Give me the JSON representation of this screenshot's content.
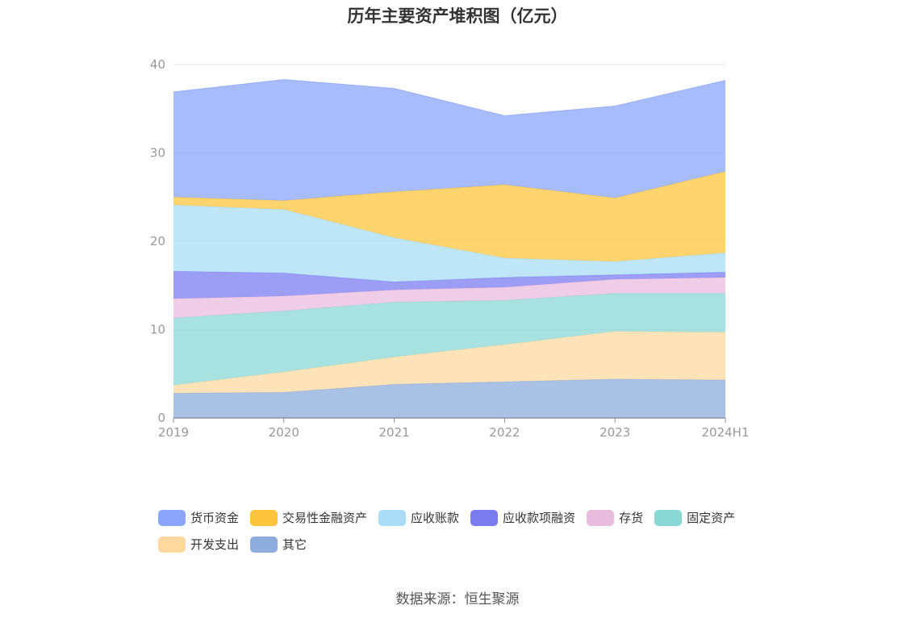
{
  "chart_data": {
    "type": "area",
    "stacked": true,
    "title": "历年主要资产堆积图（亿元）",
    "categories": [
      "2019",
      "2020",
      "2021",
      "2022",
      "2023",
      "2024H1"
    ],
    "ylim": [
      0,
      40
    ],
    "yticks": [
      0,
      10,
      20,
      30,
      40
    ],
    "grid": true,
    "legend_position": "bottom",
    "series": [
      {
        "name": "其它",
        "color": "#8eacdd",
        "values": [
          2.8,
          2.9,
          3.8,
          4.1,
          4.4,
          4.3
        ]
      },
      {
        "name": "开发支出",
        "color": "#fdd9a0",
        "values": [
          0.9,
          2.3,
          3.1,
          4.2,
          5.4,
          5.4
        ]
      },
      {
        "name": "固定资产",
        "color": "#8ad8d6",
        "values": [
          7.6,
          6.9,
          6.2,
          5.0,
          4.3,
          4.4
        ]
      },
      {
        "name": "存货",
        "color": "#e9bcdd",
        "values": [
          2.2,
          1.7,
          1.4,
          1.5,
          1.6,
          1.8
        ]
      },
      {
        "name": "应收款项融资",
        "color": "#7b7cf0",
        "values": [
          3.1,
          2.6,
          0.9,
          1.1,
          0.5,
          0.6
        ]
      },
      {
        "name": "应收账款",
        "color": "#a9dcf7",
        "values": [
          7.5,
          7.2,
          5.0,
          2.2,
          1.5,
          2.2
        ]
      },
      {
        "name": "交易性金融资产",
        "color": "#fdc53e",
        "values": [
          0.9,
          1.0,
          5.2,
          8.3,
          7.2,
          9.2
        ]
      },
      {
        "name": "货币资金",
        "color": "#8aa5fa",
        "values": [
          11.9,
          13.7,
          11.7,
          7.8,
          10.4,
          10.3
        ]
      }
    ],
    "legend_order": [
      "货币资金",
      "交易性金融资产",
      "应收账款",
      "应收款项融资",
      "存货",
      "固定资产",
      "开发支出",
      "其它"
    ]
  },
  "source": "数据来源：恒生聚源"
}
